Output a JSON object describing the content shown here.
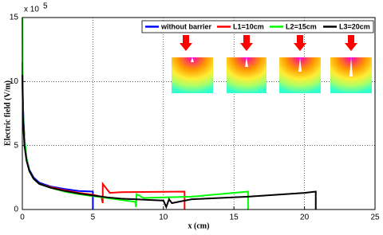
{
  "chart_data": {
    "type": "line",
    "y_scale_base": "x 10",
    "y_scale_exponent": "5",
    "xlabel": "x (cm)",
    "ylabel": "Electric field (V/m)",
    "xlim": [
      0,
      25
    ],
    "xticks": [
      0,
      5,
      10,
      15,
      20,
      25
    ],
    "ylim": [
      0,
      15
    ],
    "yticks": [
      0,
      5,
      10,
      15
    ],
    "grid": true,
    "legend": "top-right",
    "series": [
      {
        "name": "without barrier",
        "color": "#0000ff",
        "x": [
          0,
          0.05,
          0.15,
          0.3,
          0.5,
          0.8,
          1.2,
          2,
          3,
          4,
          5,
          5
        ],
        "values": [
          11.5,
          8,
          5.5,
          4,
          3.1,
          2.5,
          2.1,
          1.8,
          1.6,
          1.45,
          1.4,
          0
        ]
      },
      {
        "name": "L1=10cm",
        "color": "#ff0000",
        "x": [
          0,
          0.05,
          0.15,
          0.3,
          0.5,
          0.8,
          1.2,
          2,
          3,
          4,
          5,
          5.6,
          5.7,
          5.7,
          6.2,
          7,
          11.5,
          11.5
        ],
        "values": [
          11,
          7.5,
          5.2,
          3.9,
          3,
          2.4,
          2,
          1.75,
          1.5,
          1.3,
          1.15,
          1,
          0.5,
          2,
          1.3,
          1.35,
          1.4,
          0
        ]
      },
      {
        "name": "L2=15cm",
        "color": "#00ff00",
        "x": [
          0,
          0.02,
          0.1,
          0.3,
          0.5,
          0.8,
          1.2,
          2,
          3,
          4,
          5,
          6,
          7,
          8,
          8.05,
          8.1,
          8.6,
          12,
          16,
          16
        ],
        "values": [
          15,
          9,
          6,
          4,
          3,
          2.4,
          2,
          1.7,
          1.4,
          1.2,
          1.05,
          0.9,
          0.75,
          0.6,
          0.2,
          1.2,
          0.9,
          1,
          1.4,
          0
        ]
      },
      {
        "name": "L3=20cm",
        "color": "#000000",
        "x": [
          0,
          0.05,
          0.15,
          0.3,
          0.5,
          0.8,
          1.2,
          2,
          3,
          4,
          5,
          6,
          7,
          8,
          9,
          10,
          10.2,
          10.4,
          10.6,
          12,
          14,
          16,
          18,
          20,
          20.8,
          20.8
        ],
        "values": [
          10.5,
          7,
          5,
          3.8,
          3,
          2.4,
          2,
          1.7,
          1.45,
          1.25,
          1.1,
          0.95,
          0.85,
          0.8,
          0.75,
          0.7,
          0.2,
          0.8,
          0.5,
          0.8,
          0.9,
          1,
          1.15,
          1.3,
          1.4,
          0
        ]
      }
    ]
  }
}
